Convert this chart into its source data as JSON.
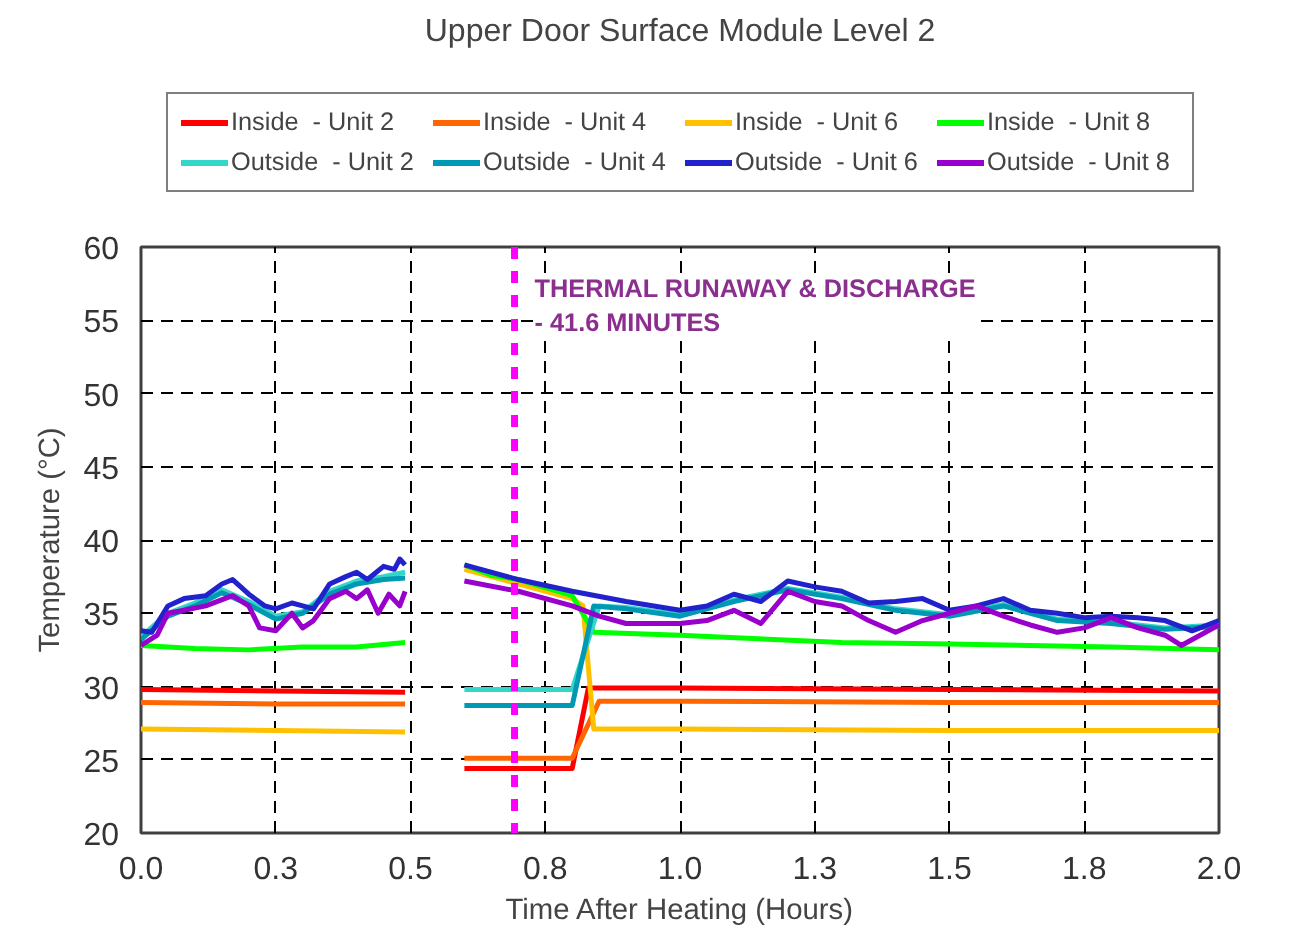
{
  "chart_data": {
    "type": "line",
    "title": "Upper Door Surface Module Level 2",
    "xlabel": "Time After Heating (Hours)",
    "ylabel": "Temperature (°C)",
    "xlim": [
      0,
      2.0
    ],
    "ylim": [
      20,
      60
    ],
    "xticks": [
      {
        "value": 0,
        "label": "0.0"
      },
      {
        "value": 0.25,
        "label": "0.3"
      },
      {
        "value": 0.5,
        "label": "0.5"
      },
      {
        "value": 0.75,
        "label": "0.8"
      },
      {
        "value": 1.0,
        "label": "1.0"
      },
      {
        "value": 1.25,
        "label": "1.3"
      },
      {
        "value": 1.5,
        "label": "1.5"
      },
      {
        "value": 1.75,
        "label": "1.8"
      },
      {
        "value": 2.0,
        "label": "2.0"
      }
    ],
    "yticks": [
      20,
      25,
      30,
      35,
      40,
      45,
      50,
      55,
      60
    ],
    "grid": true,
    "legend": "top",
    "line_style": "solid",
    "marker": "none",
    "ref_lines": [
      {
        "axis": "x",
        "value": 0.693,
        "color": "#ff00ff",
        "line_style": "dashed",
        "label": "THERMAL RUNAWAY & DISCHARGE\n- 41.6 MINUTES"
      }
    ],
    "series": [
      {
        "name": "Inside  - Unit 2",
        "color": "#ff0000",
        "x": [
          0,
          0.25,
          0.49,
          0.55,
          0.6,
          0.8,
          0.83,
          1.0,
          1.5,
          2.0
        ],
        "values": [
          29.8,
          29.7,
          29.6,
          null,
          24.4,
          24.4,
          29.9,
          29.9,
          29.8,
          29.7
        ]
      },
      {
        "name": "Inside  - Unit 4",
        "color": "#ff6600",
        "x": [
          0,
          0.25,
          0.49,
          0.55,
          0.6,
          0.8,
          0.85,
          1.0,
          1.5,
          2.0
        ],
        "values": [
          28.9,
          28.8,
          28.8,
          null,
          25.1,
          25.1,
          29.0,
          29.0,
          28.9,
          28.9
        ]
      },
      {
        "name": "Inside  - Unit 6",
        "color": "#ffc000",
        "x": [
          0,
          0.25,
          0.49,
          0.55,
          0.6,
          0.7,
          0.8,
          0.82,
          0.84,
          1.0,
          1.5,
          2.0
        ],
        "values": [
          27.1,
          27.0,
          26.9,
          null,
          38.0,
          37.0,
          36.0,
          35.5,
          27.1,
          27.1,
          27.0,
          27.0
        ]
      },
      {
        "name": "Inside  - Unit 8",
        "color": "#00ff00",
        "x": [
          0,
          0.1,
          0.2,
          0.3,
          0.4,
          0.49,
          0.55,
          0.6,
          0.65,
          0.7,
          0.8,
          0.84,
          1.0,
          1.3,
          1.5,
          1.8,
          2.0
        ],
        "values": [
          32.8,
          32.6,
          32.5,
          32.7,
          32.7,
          33.0,
          null,
          38.3,
          37.6,
          37.3,
          36.2,
          33.7,
          33.5,
          33.0,
          32.9,
          32.7,
          32.5
        ]
      },
      {
        "name": "Outside  - Unit 2",
        "color": "#33d6c8",
        "x": [
          0,
          0.05,
          0.1,
          0.15,
          0.2,
          0.25,
          0.3,
          0.35,
          0.4,
          0.45,
          0.49,
          0.55,
          0.6,
          0.8,
          0.85,
          0.9,
          1.0,
          1.1,
          1.2,
          1.3,
          1.4,
          1.5,
          1.6,
          1.7,
          1.8,
          1.9,
          2.0
        ],
        "values": [
          33.4,
          35.0,
          35.7,
          36.6,
          35.8,
          34.8,
          35.1,
          36.5,
          37.2,
          37.5,
          37.8,
          null,
          29.8,
          29.8,
          35.5,
          35.4,
          34.9,
          35.9,
          36.7,
          36.1,
          35.3,
          34.9,
          35.6,
          34.6,
          34.4,
          34.0,
          34.2
        ]
      },
      {
        "name": "Outside  - Unit 4",
        "color": "#0099b3",
        "x": [
          0,
          0.05,
          0.1,
          0.15,
          0.2,
          0.25,
          0.3,
          0.35,
          0.4,
          0.45,
          0.49,
          0.55,
          0.6,
          0.8,
          0.84,
          0.9,
          1.0,
          1.1,
          1.2,
          1.3,
          1.4,
          1.5,
          1.6,
          1.7,
          1.8,
          1.9,
          2.0
        ],
        "values": [
          33.2,
          34.8,
          35.5,
          36.4,
          35.6,
          34.6,
          35.0,
          36.3,
          37.0,
          37.3,
          37.4,
          null,
          28.7,
          28.7,
          35.5,
          35.3,
          34.8,
          35.8,
          36.6,
          36.0,
          35.2,
          34.8,
          35.5,
          34.5,
          34.3,
          33.9,
          34.1
        ]
      },
      {
        "name": "Outside  - Unit 6",
        "color": "#2222cc",
        "x": [
          0,
          0.02,
          0.05,
          0.08,
          0.12,
          0.15,
          0.17,
          0.2,
          0.23,
          0.25,
          0.28,
          0.3,
          0.32,
          0.35,
          0.38,
          0.4,
          0.42,
          0.45,
          0.47,
          0.48,
          0.49,
          0.55,
          0.6,
          0.7,
          0.8,
          0.9,
          1.0,
          1.05,
          1.1,
          1.15,
          1.2,
          1.25,
          1.3,
          1.35,
          1.4,
          1.45,
          1.5,
          1.55,
          1.6,
          1.65,
          1.7,
          1.75,
          1.8,
          1.85,
          1.9,
          1.95,
          2.0
        ],
        "values": [
          33.8,
          33.7,
          35.5,
          36.0,
          36.2,
          37.0,
          37.3,
          36.3,
          35.5,
          35.3,
          35.7,
          35.5,
          35.3,
          37.0,
          37.5,
          37.8,
          37.3,
          38.2,
          38.0,
          38.7,
          38.3,
          null,
          38.3,
          37.3,
          36.5,
          35.8,
          35.2,
          35.5,
          36.3,
          35.8,
          37.2,
          36.8,
          36.5,
          35.7,
          35.8,
          36.0,
          35.2,
          35.5,
          36.0,
          35.2,
          35.0,
          34.7,
          34.8,
          34.7,
          34.5,
          33.8,
          34.5
        ]
      },
      {
        "name": "Outside  - Unit 8",
        "color": "#9900cc",
        "x": [
          0,
          0.03,
          0.05,
          0.08,
          0.12,
          0.17,
          0.2,
          0.22,
          0.25,
          0.28,
          0.3,
          0.32,
          0.35,
          0.38,
          0.4,
          0.42,
          0.44,
          0.46,
          0.48,
          0.49,
          0.55,
          0.6,
          0.7,
          0.8,
          0.85,
          0.9,
          1.0,
          1.05,
          1.1,
          1.15,
          1.2,
          1.25,
          1.3,
          1.35,
          1.4,
          1.45,
          1.5,
          1.55,
          1.6,
          1.65,
          1.7,
          1.75,
          1.8,
          1.85,
          1.9,
          1.93,
          2.0
        ],
        "values": [
          32.8,
          33.5,
          35.0,
          35.2,
          35.5,
          36.2,
          35.5,
          34.0,
          33.8,
          35.0,
          34.0,
          34.5,
          36.0,
          36.5,
          36.0,
          36.6,
          35.0,
          36.3,
          35.5,
          36.5,
          null,
          37.2,
          36.5,
          35.5,
          34.8,
          34.3,
          34.3,
          34.5,
          35.2,
          34.3,
          36.5,
          35.8,
          35.5,
          34.5,
          33.7,
          34.5,
          35.0,
          35.5,
          34.8,
          34.2,
          33.7,
          34.0,
          34.7,
          34.0,
          33.5,
          32.8,
          34.2
        ]
      }
    ]
  }
}
